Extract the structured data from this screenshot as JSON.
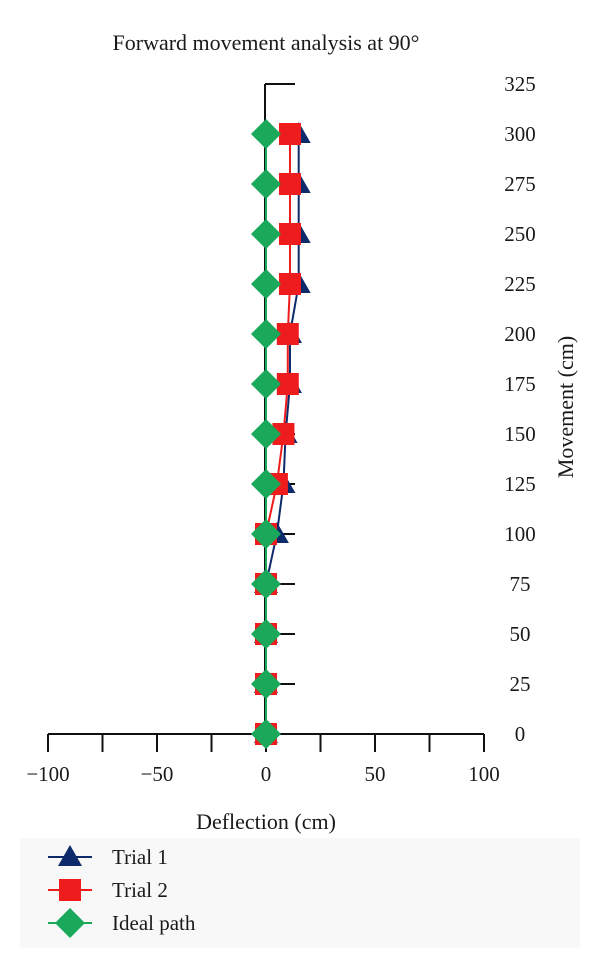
{
  "chart_data": {
    "type": "line",
    "title": "Forward movement analysis at 90°",
    "xlabel": "Deflection (cm)",
    "ylabel": "Movement (cm)",
    "xlim": [
      -100,
      100
    ],
    "ylim": [
      0,
      325
    ],
    "xticks": [
      -100,
      -75,
      -50,
      -25,
      0,
      25,
      50,
      75,
      100
    ],
    "xtick_labels": [
      "−100",
      "",
      "−50",
      "",
      "0",
      "",
      "50",
      "",
      "100"
    ],
    "yticks": [
      0,
      25,
      50,
      75,
      100,
      125,
      150,
      175,
      200,
      225,
      250,
      275,
      300,
      325
    ],
    "ytick_labels": [
      "0",
      "25",
      "50",
      "75",
      "100",
      "125",
      "150",
      "175",
      "200",
      "225",
      "250",
      "275",
      "300",
      "325"
    ],
    "y_axis_side": "right",
    "grid": false,
    "legend_position": "bottom-left",
    "series": [
      {
        "name": "Trial 1",
        "color": "#0d2a6b",
        "marker": "triangle",
        "points": [
          [
            0,
            0
          ],
          [
            0,
            25
          ],
          [
            0,
            50
          ],
          [
            0,
            75
          ],
          [
            5,
            100
          ],
          [
            8,
            125
          ],
          [
            9,
            150
          ],
          [
            11,
            175
          ],
          [
            11,
            200
          ],
          [
            15,
            225
          ],
          [
            15,
            250
          ],
          [
            15,
            275
          ],
          [
            15,
            300
          ]
        ]
      },
      {
        "name": "Trial 2",
        "color": "#ee1c1c",
        "marker": "square",
        "points": [
          [
            0,
            0
          ],
          [
            0,
            25
          ],
          [
            0,
            50
          ],
          [
            0,
            75
          ],
          [
            0,
            100
          ],
          [
            5,
            125
          ],
          [
            8,
            150
          ],
          [
            10,
            175
          ],
          [
            10,
            200
          ],
          [
            11,
            225
          ],
          [
            11,
            250
          ],
          [
            11,
            275
          ],
          [
            11,
            300
          ]
        ]
      },
      {
        "name": "Ideal path",
        "color": "#1aa85a",
        "marker": "diamond",
        "points": [
          [
            0,
            0
          ],
          [
            0,
            25
          ],
          [
            0,
            50
          ],
          [
            0,
            75
          ],
          [
            0,
            100
          ],
          [
            0,
            125
          ],
          [
            0,
            150
          ],
          [
            0,
            175
          ],
          [
            0,
            200
          ],
          [
            0,
            225
          ],
          [
            0,
            250
          ],
          [
            0,
            275
          ],
          [
            0,
            300
          ]
        ]
      }
    ]
  }
}
